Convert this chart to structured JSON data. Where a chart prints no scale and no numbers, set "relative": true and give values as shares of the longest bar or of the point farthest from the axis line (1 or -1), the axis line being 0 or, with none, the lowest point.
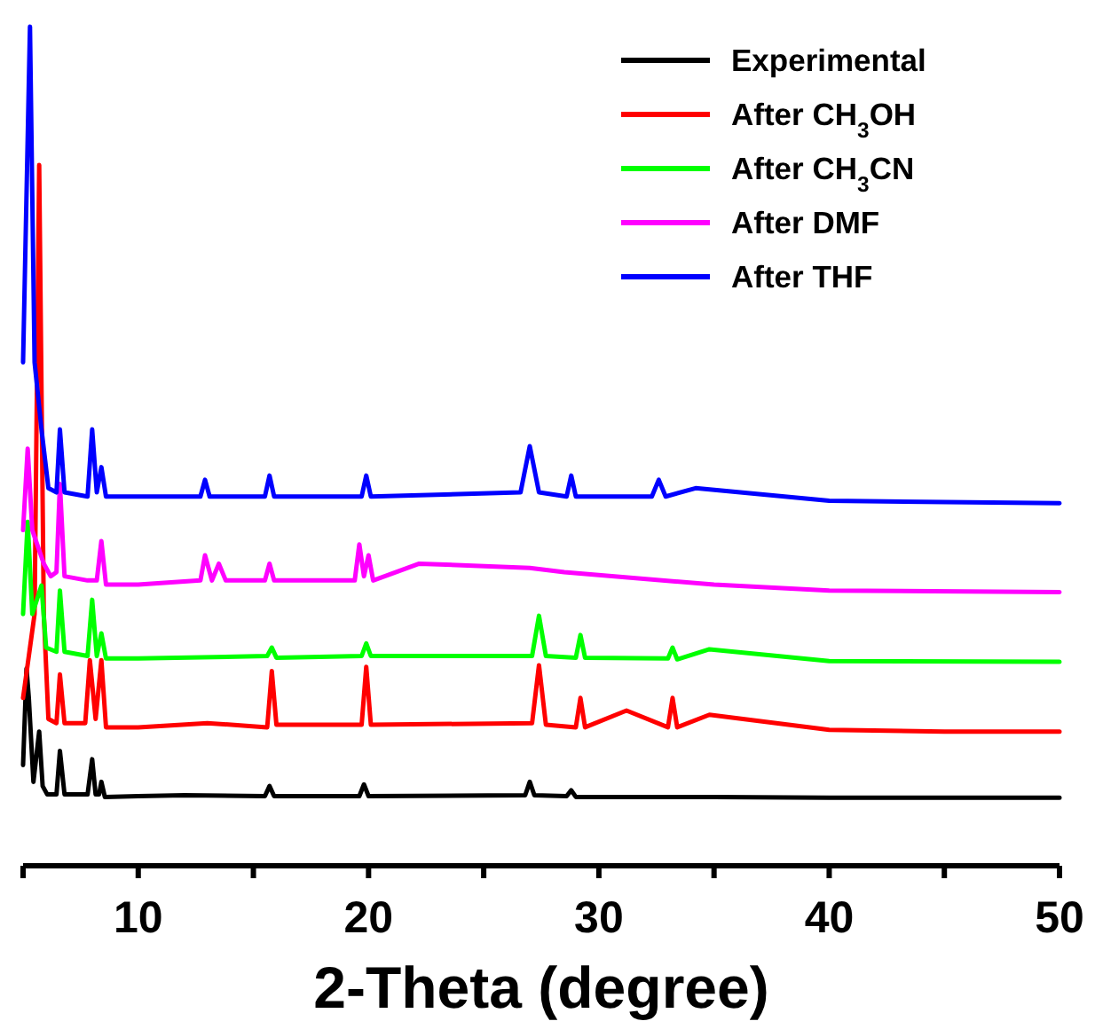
{
  "chart_data": {
    "type": "line",
    "relative": true,
    "xlabel": "2-Theta (degree)",
    "xlim": [
      5,
      50
    ],
    "xticks": [
      {
        "value": 5,
        "label": null
      },
      10,
      {
        "value": 15,
        "label": null
      },
      20,
      {
        "value": 25,
        "label": null
      },
      30,
      {
        "value": 35,
        "label": null
      },
      40,
      {
        "value": 45,
        "label": null
      },
      50
    ],
    "grid": false,
    "legend": "top right",
    "marker": "none",
    "line_style": "solid",
    "series": [
      {
        "name": "Experimental",
        "color": "#000000",
        "x": [
          5.0,
          5.15,
          5.25,
          5.45,
          5.7,
          5.85,
          6.05,
          6.45,
          6.6,
          6.8,
          7.8,
          8.0,
          8.15,
          8.3,
          8.4,
          8.55,
          10,
          12,
          15.5,
          15.7,
          15.9,
          19.6,
          19.8,
          20.0,
          26.8,
          27.0,
          27.2,
          28.6,
          28.8,
          29.0,
          35,
          40,
          45,
          50
        ],
        "values": [
          0.12,
          0.235,
          0.2,
          0.1,
          0.16,
          0.095,
          0.085,
          0.085,
          0.137,
          0.085,
          0.085,
          0.127,
          0.085,
          0.085,
          0.1,
          0.082,
          0.083,
          0.084,
          0.083,
          0.095,
          0.083,
          0.083,
          0.097,
          0.083,
          0.084,
          0.1,
          0.084,
          0.083,
          0.09,
          0.082,
          0.082,
          0.081,
          0.081,
          0.081
        ]
      },
      {
        "name": "After CH$_{3}$OH",
        "color": "#ff0000",
        "x": [
          5.0,
          5.5,
          5.7,
          5.9,
          6.1,
          6.45,
          6.6,
          6.8,
          7.7,
          7.9,
          8.15,
          8.4,
          8.6,
          10,
          13,
          15.6,
          15.8,
          16.0,
          19.7,
          19.9,
          20.1,
          27.1,
          27.4,
          27.7,
          29.0,
          29.2,
          29.4,
          31.2,
          33.0,
          33.2,
          33.4,
          34.8,
          40,
          45,
          50
        ],
        "values": [
          0.2,
          0.3,
          0.835,
          0.3,
          0.175,
          0.17,
          0.228,
          0.17,
          0.17,
          0.245,
          0.175,
          0.245,
          0.165,
          0.165,
          0.17,
          0.165,
          0.232,
          0.168,
          0.168,
          0.237,
          0.168,
          0.17,
          0.239,
          0.168,
          0.165,
          0.2,
          0.165,
          0.185,
          0.165,
          0.2,
          0.165,
          0.18,
          0.162,
          0.16,
          0.16
        ]
      },
      {
        "name": "After CH$_{3}$CN",
        "color": "#00ff00",
        "x": [
          5.0,
          5.2,
          5.4,
          5.8,
          6.0,
          6.45,
          6.6,
          6.8,
          7.8,
          8.0,
          8.2,
          8.4,
          8.6,
          10,
          15.6,
          15.8,
          16.0,
          19.7,
          19.9,
          20.1,
          27.1,
          27.4,
          27.7,
          29.0,
          29.2,
          29.4,
          33.0,
          33.2,
          33.4,
          34.8,
          40,
          50
        ],
        "values": [
          0.3,
          0.41,
          0.3,
          0.334,
          0.26,
          0.255,
          0.328,
          0.255,
          0.25,
          0.317,
          0.25,
          0.277,
          0.247,
          0.247,
          0.25,
          0.26,
          0.248,
          0.25,
          0.265,
          0.25,
          0.25,
          0.298,
          0.25,
          0.248,
          0.275,
          0.248,
          0.247,
          0.26,
          0.246,
          0.258,
          0.244,
          0.243
        ]
      },
      {
        "name": "After DMF",
        "color": "#ff00ff",
        "x": [
          5.0,
          5.2,
          5.4,
          5.9,
          6.2,
          6.45,
          6.6,
          6.8,
          7.8,
          8.0,
          8.2,
          8.4,
          8.6,
          10,
          12.7,
          12.9,
          13.2,
          13.5,
          13.8,
          15.5,
          15.7,
          15.9,
          19.4,
          19.6,
          19.8,
          20.0,
          20.2,
          22.2,
          27.0,
          28.5,
          35,
          40,
          50
        ],
        "values": [
          0.4,
          0.497,
          0.4,
          0.36,
          0.345,
          0.35,
          0.455,
          0.345,
          0.34,
          null,
          0.34,
          0.387,
          0.335,
          0.335,
          0.34,
          0.37,
          0.34,
          0.36,
          0.34,
          0.34,
          0.36,
          0.34,
          0.34,
          0.383,
          0.345,
          0.37,
          0.34,
          0.36,
          0.355,
          0.35,
          0.335,
          0.328,
          0.326
        ]
      },
      {
        "name": "After THF",
        "color": "#0000ff",
        "x": [
          5.0,
          5.3,
          5.5,
          5.8,
          6.1,
          6.45,
          6.6,
          6.8,
          7.8,
          8.0,
          8.2,
          8.4,
          8.6,
          10,
          12.7,
          12.9,
          13.1,
          15.5,
          15.7,
          15.9,
          19.7,
          19.9,
          20.1,
          26.6,
          27.0,
          27.4,
          28.6,
          28.8,
          29.0,
          32.3,
          32.6,
          32.9,
          34.2,
          40,
          50
        ],
        "values": [
          0.6,
          1.0,
          0.6,
          0.52,
          0.45,
          0.445,
          0.52,
          0.445,
          0.44,
          0.52,
          0.445,
          0.475,
          0.44,
          0.44,
          0.44,
          0.46,
          0.44,
          0.44,
          0.465,
          0.44,
          0.44,
          0.465,
          0.44,
          0.445,
          0.5,
          0.445,
          0.44,
          0.465,
          0.44,
          0.44,
          0.46,
          0.44,
          0.45,
          0.435,
          0.432
        ]
      }
    ]
  }
}
